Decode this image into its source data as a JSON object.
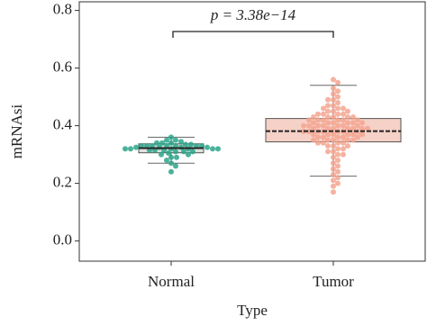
{
  "chart_data": {
    "type": "box",
    "xlabel": "Type",
    "ylabel": "mRNAsi",
    "annotation": "p = 3.38e−14",
    "categories": [
      "Normal",
      "Tumor"
    ],
    "ylim": [
      -0.07,
      0.83
    ],
    "yticks": [
      {
        "value": 0,
        "label": "0.0"
      },
      0.2,
      0.4,
      0.6,
      0.8
    ],
    "colors": [
      "#2aa58a",
      "#f4a58f"
    ],
    "box_fills": [
      "#d7ddd9",
      "#f3c9bd"
    ],
    "boxes": [
      {
        "whislo": 0.27,
        "q1": 0.306,
        "med": 0.322,
        "q3": 0.337,
        "whishi": 0.36
      },
      {
        "whislo": 0.225,
        "q1": 0.344,
        "med": 0.381,
        "q3": 0.425,
        "whishi": 0.54
      }
    ],
    "points": [
      [
        0.36,
        0.35,
        0.35,
        0.345,
        0.34,
        0.34,
        0.34,
        0.335,
        0.335,
        0.33,
        0.33,
        0.33,
        0.33,
        0.33,
        0.33,
        0.33,
        0.325,
        0.325,
        0.325,
        0.325,
        0.32,
        0.32,
        0.32,
        0.32,
        0.32,
        0.32,
        0.315,
        0.315,
        0.315,
        0.31,
        0.31,
        0.31,
        0.305,
        0.3,
        0.3,
        0.29,
        0.29,
        0.28,
        0.27,
        0.26,
        0.24
      ],
      [
        0.56,
        0.55,
        0.53,
        0.52,
        0.51,
        0.5,
        0.49,
        0.49,
        0.48,
        0.47,
        0.47,
        0.46,
        0.46,
        0.46,
        0.45,
        0.45,
        0.45,
        0.44,
        0.44,
        0.44,
        0.44,
        0.43,
        0.43,
        0.43,
        0.43,
        0.43,
        0.42,
        0.42,
        0.42,
        0.42,
        0.42,
        0.42,
        0.41,
        0.41,
        0.41,
        0.41,
        0.41,
        0.41,
        0.4,
        0.4,
        0.4,
        0.4,
        0.4,
        0.4,
        0.4,
        0.39,
        0.39,
        0.39,
        0.39,
        0.39,
        0.39,
        0.39,
        0.38,
        0.38,
        0.38,
        0.38,
        0.38,
        0.38,
        0.38,
        0.37,
        0.37,
        0.37,
        0.37,
        0.37,
        0.37,
        0.36,
        0.36,
        0.36,
        0.36,
        0.36,
        0.35,
        0.35,
        0.35,
        0.35,
        0.35,
        0.34,
        0.34,
        0.34,
        0.34,
        0.33,
        0.33,
        0.33,
        0.32,
        0.32,
        0.31,
        0.31,
        0.3,
        0.3,
        0.29,
        0.28,
        0.27,
        0.26,
        0.25,
        0.24,
        0.23,
        0.22,
        0.21,
        0.2,
        0.19,
        0.17
      ]
    ]
  }
}
